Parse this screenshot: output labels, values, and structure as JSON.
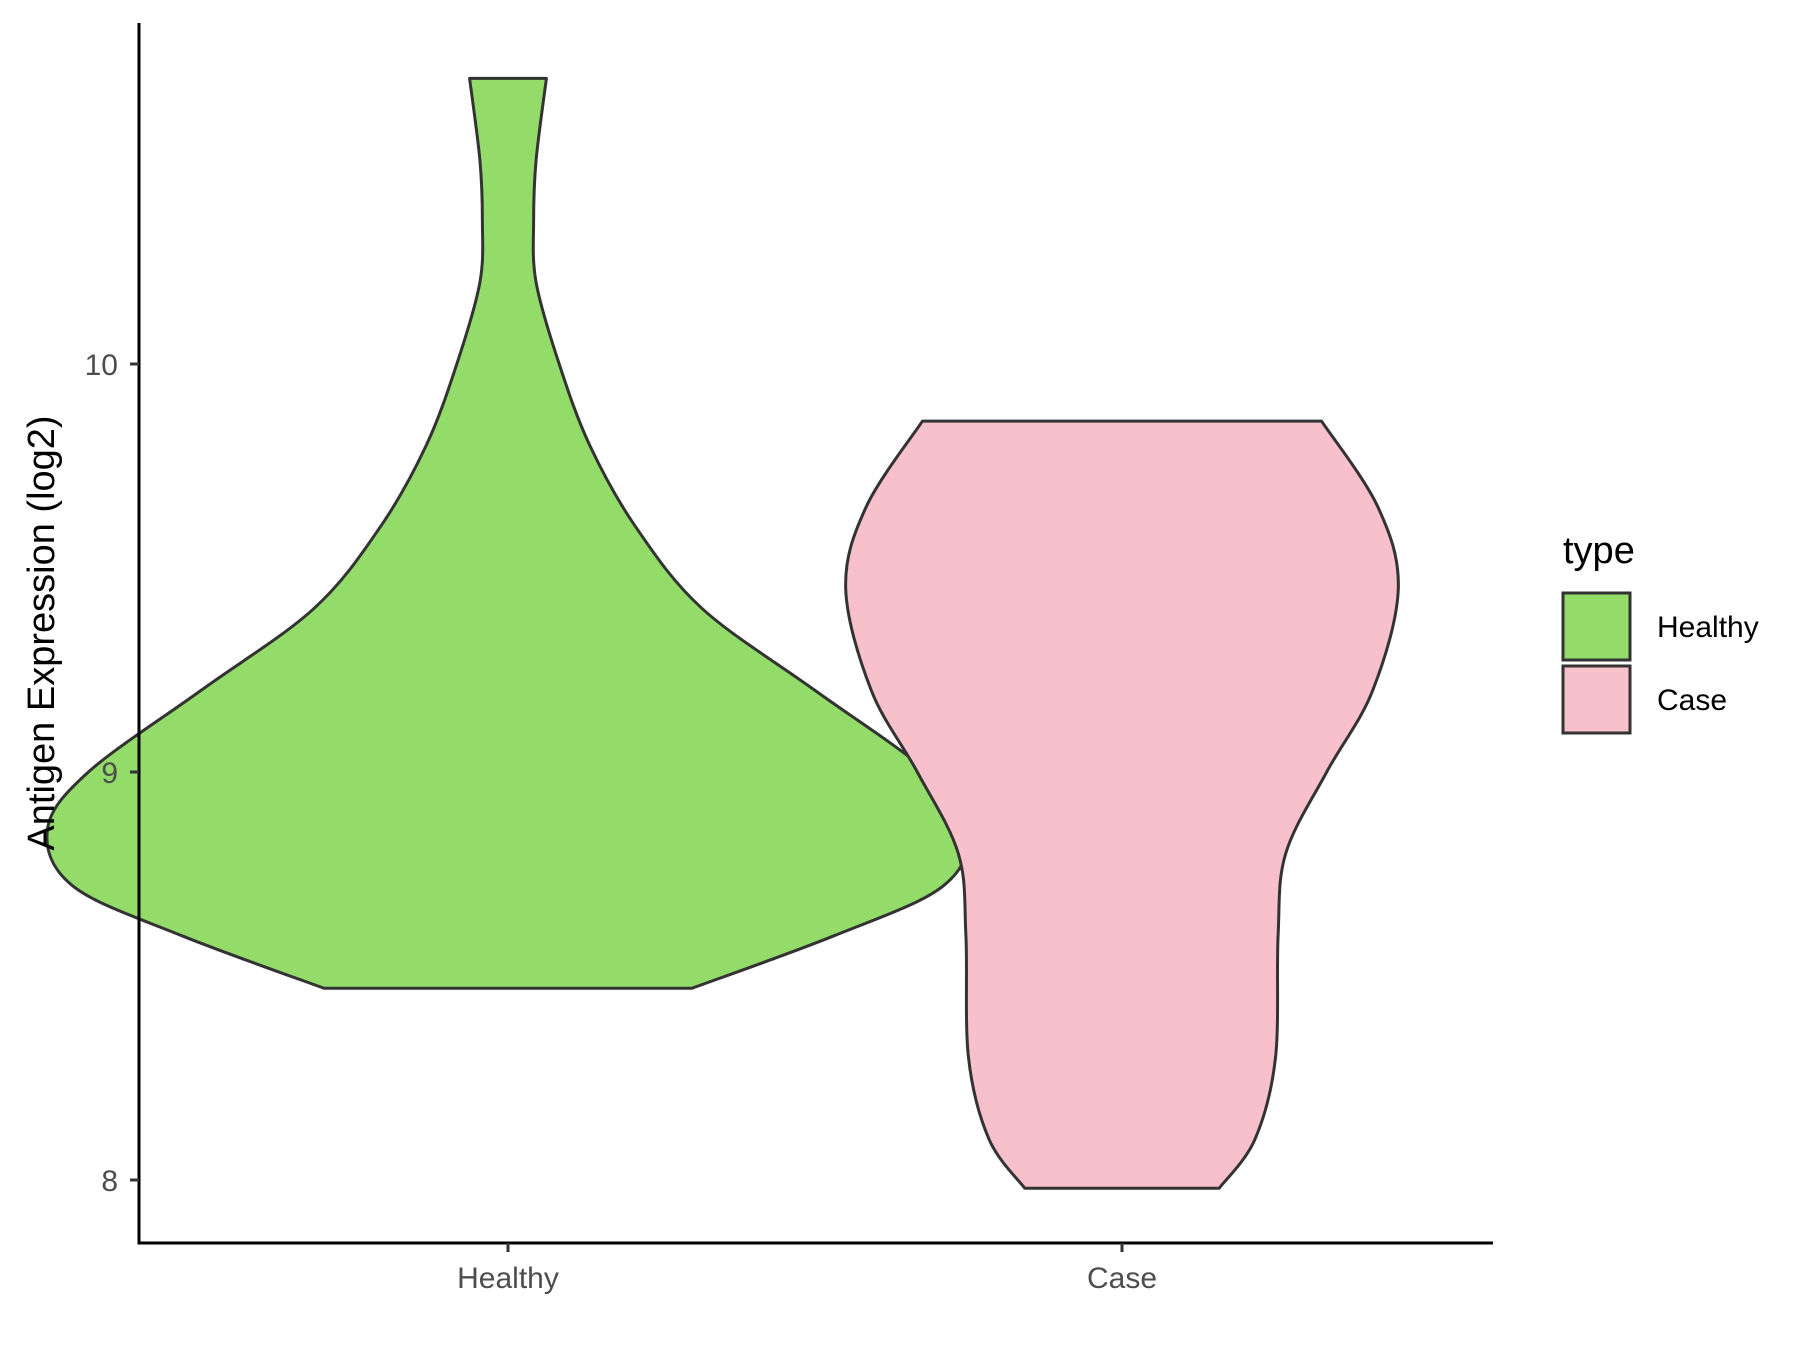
{
  "chart_data": {
    "type": "violin",
    "ylabel": "Antigen Expression (log2)",
    "xlabel": "",
    "categories": [
      "Healthy",
      "Case"
    ],
    "y_ticks": [
      8,
      9,
      10
    ],
    "ylim": [
      7.85,
      10.82
    ],
    "grid": false,
    "legend": {
      "title": "type",
      "position": "right",
      "entries": [
        {
          "label": "Healthy",
          "color": "#93dc6a"
        },
        {
          "label": "Case",
          "color": "#f7c0cb"
        }
      ]
    },
    "series": [
      {
        "name": "Healthy",
        "color": "#93dc6a",
        "y_min": 8.47,
        "y_max": 10.7,
        "density_profile": [
          [
            8.47,
            0.36
          ],
          [
            8.6,
            0.64
          ],
          [
            8.72,
            0.85
          ],
          [
            8.86,
            0.9
          ],
          [
            9.0,
            0.82
          ],
          [
            9.2,
            0.6
          ],
          [
            9.4,
            0.38
          ],
          [
            9.6,
            0.25
          ],
          [
            9.8,
            0.16
          ],
          [
            10.0,
            0.1
          ],
          [
            10.2,
            0.055
          ],
          [
            10.35,
            0.05
          ],
          [
            10.5,
            0.055
          ],
          [
            10.7,
            0.075
          ]
        ]
      },
      {
        "name": "Case",
        "color": "#f7c0cb",
        "y_min": 7.98,
        "y_max": 9.86,
        "density_profile": [
          [
            7.98,
            0.19
          ],
          [
            8.1,
            0.26
          ],
          [
            8.3,
            0.3
          ],
          [
            8.6,
            0.305
          ],
          [
            8.8,
            0.32
          ],
          [
            9.0,
            0.4
          ],
          [
            9.2,
            0.49
          ],
          [
            9.45,
            0.54
          ],
          [
            9.65,
            0.5
          ],
          [
            9.86,
            0.39
          ]
        ]
      }
    ]
  }
}
